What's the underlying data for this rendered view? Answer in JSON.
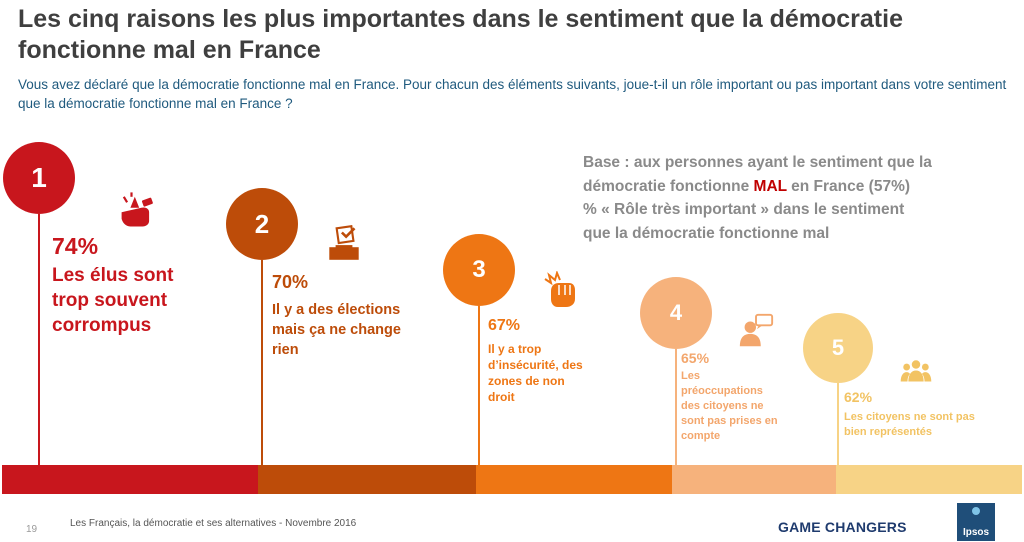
{
  "title": "Les cinq raisons les plus importantes dans le sentiment que la démocratie fonctionne mal en France",
  "subtitle": "Vous avez déclaré que la démocratie fonctionne mal en France. Pour chacun des éléments suivants, joue-t-il un rôle important ou pas important dans votre sentiment que la démocratie fonctionne mal en France ?",
  "base_note": {
    "line1": "Base : aux personnes ayant le sentiment que la",
    "line2_before": "démocratie fonctionne ",
    "line2_highlight": "MAL",
    "line2_after": " en France (57%)",
    "line3": "% « Rôle très important » dans le sentiment",
    "line4": "que la démocratie fonctionne mal"
  },
  "chart_data": {
    "type": "bar",
    "unit": "%",
    "items": [
      {
        "rank": "1",
        "value": 74,
        "label": "74%",
        "desc": [
          "Les élus sont",
          "trop souvent",
          "corrompus"
        ],
        "color": "#c8161d",
        "icon": "corruption-hand-icon"
      },
      {
        "rank": "2",
        "value": 70,
        "label": "70%",
        "desc": [
          "Il y a des élections",
          "mais ça ne change",
          "rien"
        ],
        "color": "#bd4c09",
        "icon": "ballot-box-icon"
      },
      {
        "rank": "3",
        "value": 67,
        "label": "67%",
        "desc": [
          "Il y a trop",
          "d’insécurité, des",
          "zones de non",
          "droit"
        ],
        "color": "#ee7614",
        "icon": "fist-impact-icon"
      },
      {
        "rank": "4",
        "value": 65,
        "label": "65%",
        "desc": [
          "Les",
          "préoccupations",
          "des citoyens ne",
          "sont pas prises en",
          "compte"
        ],
        "color": "#f6b27c",
        "icon": "person-speech-icon"
      },
      {
        "rank": "5",
        "value": 62,
        "label": "62%",
        "desc": [
          "Les citoyens ne sont pas",
          "bien représentés"
        ],
        "color": "#f7d386",
        "icon": "group-icon"
      }
    ]
  },
  "footer": {
    "page_number": "19",
    "source": "Les Français, la démocratie et ses alternatives - Novembre 2016",
    "brand": "GAME CHANGERS",
    "logo_text": "Ipsos"
  }
}
